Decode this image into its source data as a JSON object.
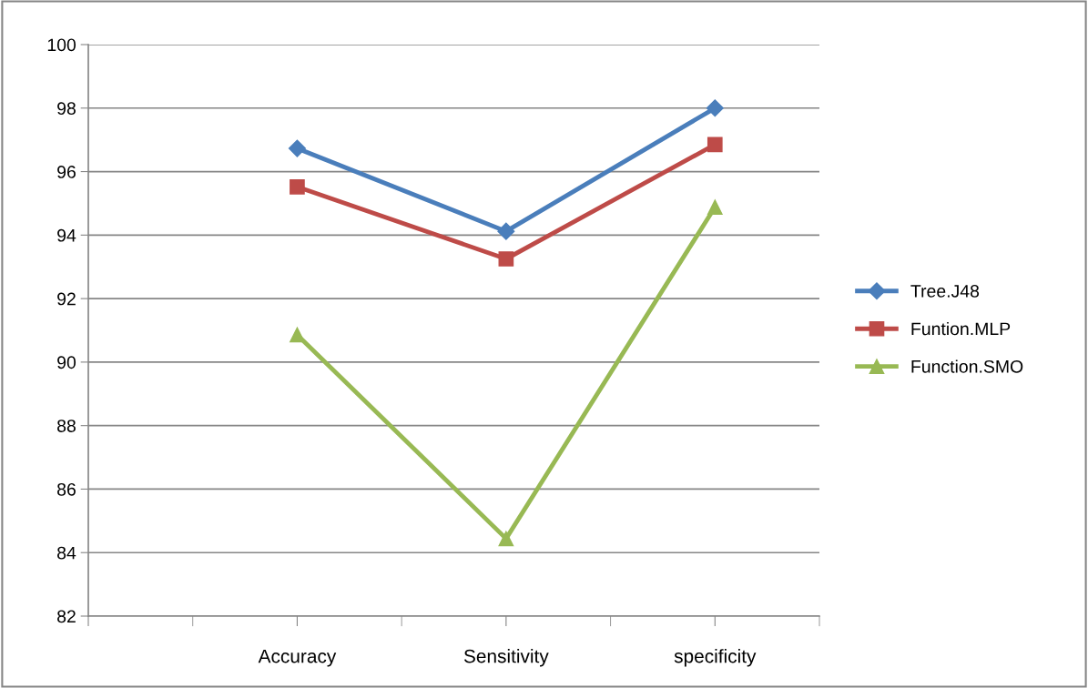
{
  "chart_data": {
    "type": "line",
    "categories": [
      null,
      "Accuracy",
      "Sensitivity",
      "specificity"
    ],
    "series": [
      {
        "name": "Tree.J48",
        "color": "#4a7ebb",
        "marker": "diamond",
        "values": [
          null,
          96.73,
          94.12,
          98.0
        ]
      },
      {
        "name": "Funtion.MLP",
        "color": "#be4b48",
        "marker": "square",
        "values": [
          null,
          95.52,
          93.25,
          96.85
        ]
      },
      {
        "name": "Function.SMO",
        "color": "#98b954",
        "marker": "triangle",
        "values": [
          null,
          90.86,
          84.44,
          94.88
        ]
      }
    ],
    "ylim": [
      82,
      100
    ],
    "yticks": [
      82,
      84,
      86,
      88,
      90,
      92,
      94,
      96,
      98,
      100
    ],
    "grid": "y",
    "legend": "right",
    "line_style": "solid"
  }
}
